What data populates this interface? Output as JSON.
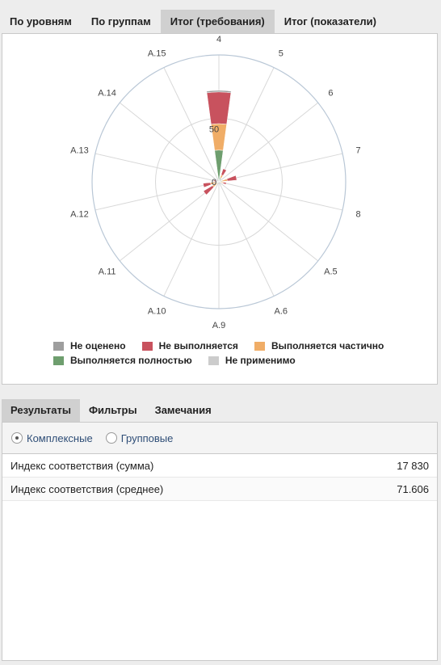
{
  "tabs": [
    {
      "label": "По уровням",
      "active": false
    },
    {
      "label": "По группам",
      "active": false
    },
    {
      "label": "Итог (требования)",
      "active": true
    },
    {
      "label": "Итог (показатели)",
      "active": false
    }
  ],
  "chart_data": {
    "type": "polar-stacked-column",
    "categories": [
      "4",
      "5",
      "6",
      "7",
      "8",
      "A.5",
      "A.6",
      "A.9",
      "A.10",
      "A.11",
      "A.12",
      "A.13",
      "A.14",
      "A.15"
    ],
    "radial_ticks": [
      "0",
      "50"
    ],
    "radial_max": 120,
    "stack_order": [
      "Выполняется полностью",
      "Выполняется частично",
      "Не выполняется",
      "Не оценено"
    ],
    "series": [
      {
        "name": "Не оценено",
        "color": "#9e9e9e",
        "values": [
          1.5,
          0,
          0,
          0,
          0,
          0,
          0,
          0,
          0,
          0,
          0,
          0,
          0,
          0
        ]
      },
      {
        "name": "Не выполняется",
        "color": "#c8525e",
        "values": [
          30,
          6,
          0,
          9,
          3,
          0,
          0,
          0,
          0,
          10,
          7,
          3,
          0,
          0
        ]
      },
      {
        "name": "Выполняется частично",
        "color": "#f0ad67",
        "values": [
          25,
          3,
          0,
          5,
          4,
          0,
          0,
          0,
          0,
          5,
          5,
          0,
          0,
          0
        ]
      },
      {
        "name": "Выполняется полностью",
        "color": "#6e9e6e",
        "values": [
          30,
          4,
          0,
          3,
          0,
          0,
          0,
          0,
          0,
          2,
          3,
          2,
          0,
          0
        ]
      },
      {
        "name": "Не применимо",
        "color": "#cccccc",
        "values": [
          0,
          0,
          0,
          0,
          0,
          0,
          0,
          0,
          0,
          0,
          0,
          0,
          0,
          0
        ]
      }
    ],
    "legend_rows": [
      [
        "Не оценено",
        "Не выполняется",
        "Выполняется частично"
      ],
      [
        "Выполняется полностью",
        "Не применимо"
      ]
    ]
  },
  "tabs2": [
    {
      "label": "Результаты",
      "active": true
    },
    {
      "label": "Фильтры",
      "active": false
    },
    {
      "label": "Замечания",
      "active": false
    }
  ],
  "radio": [
    {
      "label": "Комплексные",
      "checked": true
    },
    {
      "label": "Групповые",
      "checked": false
    }
  ],
  "results": [
    {
      "label": "Индекс соответствия (сумма)",
      "value": "17 830"
    },
    {
      "label": "Индекс соответствия (среднее)",
      "value": "71.606"
    }
  ]
}
